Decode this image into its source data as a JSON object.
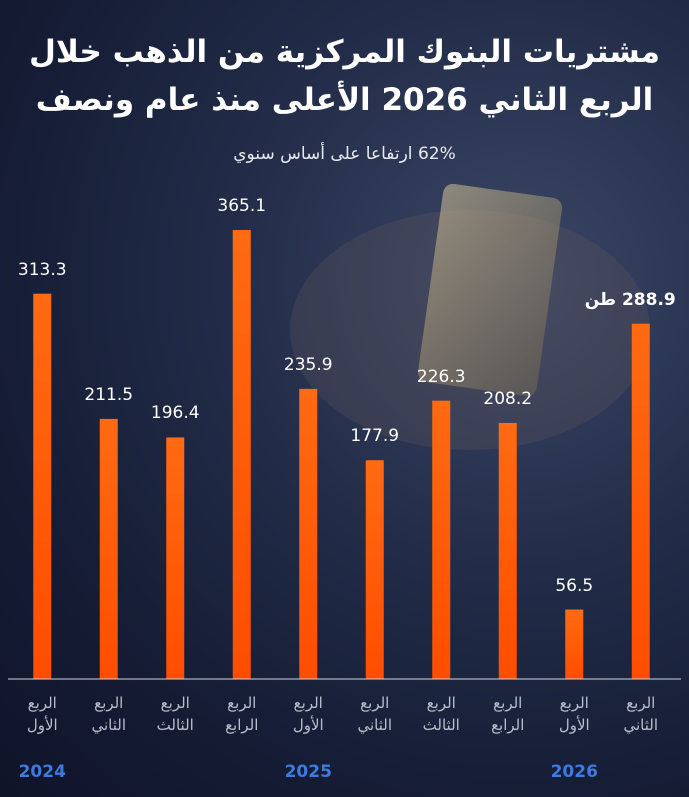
{
  "chart_data": {
    "type": "bar",
    "title": "مشتريات البنوك المركزية من الذهب خلال الربع الثاني 2026 الأعلى منذ عام ونصف",
    "subtitle": "62% ارتفاعا على أساس سنوي",
    "categories": [
      "الربع الأول",
      "الربع الثاني",
      "الربع الثالث",
      "الربع الرابع",
      "الربع الأول",
      "الربع الثاني",
      "الربع الثالث",
      "الربع الرابع",
      "الربع الأول",
      "الربع الثاني"
    ],
    "x_groups": [
      "2024",
      null,
      null,
      null,
      "2025",
      null,
      null,
      null,
      "2026",
      null
    ],
    "values": [
      313.3,
      211.5,
      196.4,
      365.1,
      235.9,
      177.9,
      226.3,
      208.2,
      56.5,
      288.9
    ],
    "value_labels": [
      "313.3",
      "211.5",
      "196.4",
      "365.1",
      "235.9",
      "177.9",
      "226.3",
      "208.2",
      "56.5",
      "288.9 طن"
    ],
    "color": "#ff5f0f"
  }
}
